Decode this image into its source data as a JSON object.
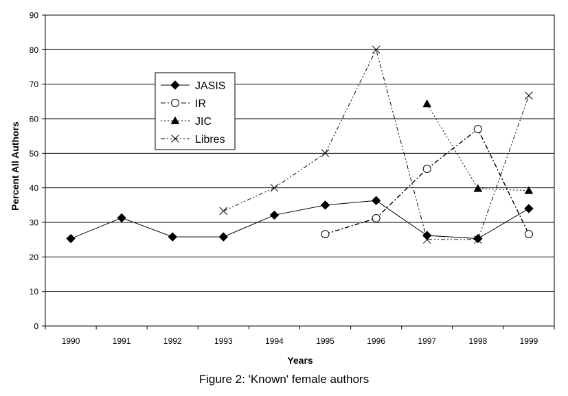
{
  "caption": "Figure 2: 'Known' female authors",
  "chart_data": {
    "type": "line",
    "title": "",
    "xlabel": "Years",
    "ylabel": "Percent All Authors",
    "categories": [
      "1990",
      "1991",
      "1992",
      "1993",
      "1994",
      "1995",
      "1996",
      "1997",
      "1998",
      "1999"
    ],
    "ylim": [
      0,
      90
    ],
    "yticks": [
      "0",
      "10",
      "20",
      "30",
      "40",
      "50",
      "60",
      "70",
      "80",
      "90"
    ],
    "grid": "horizontal",
    "legend_position": "upper-left-inside",
    "series": [
      {
        "name": "JASIS",
        "marker": "diamond-filled",
        "line": "solid",
        "values": [
          25.3,
          31.3,
          25.8,
          25.8,
          32.1,
          35.0,
          36.3,
          26.2,
          25.3,
          34.0
        ]
      },
      {
        "name": "IR",
        "marker": "circle-open",
        "line": "dashdot",
        "values": [
          null,
          null,
          null,
          null,
          null,
          26.6,
          31.2,
          45.5,
          57.0,
          26.6
        ]
      },
      {
        "name": "JIC",
        "marker": "triangle-filled",
        "line": "dotted",
        "values": [
          null,
          null,
          null,
          null,
          null,
          null,
          null,
          64.3,
          39.8,
          39.2
        ]
      },
      {
        "name": "Libres",
        "marker": "x",
        "line": "dashdotdot",
        "values": [
          null,
          null,
          null,
          33.3,
          40.0,
          50.0,
          80.0,
          25.0,
          25.0,
          66.7
        ]
      }
    ]
  }
}
